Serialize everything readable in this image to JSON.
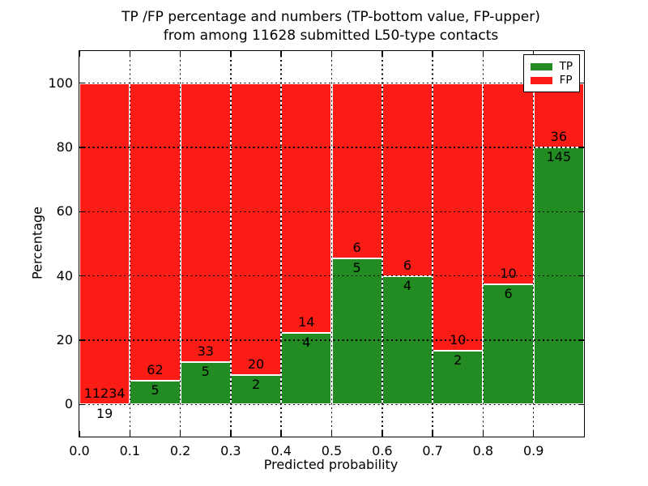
{
  "title": {
    "line1": "TP /FP percentage and numbers (TP-bottom value, FP-upper)",
    "line2": "from among 11628 submitted L50-type contacts"
  },
  "axes": {
    "xlabel": "Predicted probability",
    "ylabel": "Percentage",
    "xlim": [
      0.0,
      1.0
    ],
    "ylim": [
      -10,
      110
    ],
    "x_tick_values": [
      0.0,
      0.1,
      0.2,
      0.3,
      0.4,
      0.5,
      0.6,
      0.7,
      0.8,
      0.9
    ],
    "x_tick_labels": [
      "0.0",
      "0.1",
      "0.2",
      "0.3",
      "0.4",
      "0.5",
      "0.6",
      "0.7",
      "0.8",
      "0.9"
    ],
    "y_tick_values": [
      0,
      20,
      40,
      60,
      80,
      100
    ],
    "y_tick_labels": [
      "0",
      "20",
      "40",
      "60",
      "80",
      "100"
    ],
    "grid_style": "dotted"
  },
  "legend": {
    "position": "upper right",
    "entries": [
      {
        "label": "TP",
        "color": "#228b22"
      },
      {
        "label": "FP",
        "color": "#fa1c15"
      }
    ]
  },
  "chart_data": {
    "type": "bar",
    "stacked": true,
    "normalization": "each 0.1-wide bin scaled to 100%; TP (green) bottom, FP (red) upper",
    "bin_width": 0.1,
    "bin_starts": [
      0.0,
      0.1,
      0.2,
      0.3,
      0.4,
      0.5,
      0.6,
      0.7,
      0.8,
      0.9
    ],
    "series": [
      {
        "name": "TP",
        "color": "#228b22",
        "counts": [
          19,
          5,
          5,
          2,
          4,
          5,
          4,
          2,
          6,
          145
        ]
      },
      {
        "name": "FP",
        "color": "#fa1c15",
        "counts": [
          11234,
          62,
          33,
          20,
          14,
          6,
          6,
          10,
          10,
          36
        ]
      }
    ],
    "tp_percent_heights": [
      0.17,
      7.46,
      13.16,
      9.09,
      22.22,
      45.45,
      40.0,
      16.67,
      37.5,
      80.11
    ],
    "total_submitted": 11628,
    "bar_edge_color": "#ffffff"
  }
}
